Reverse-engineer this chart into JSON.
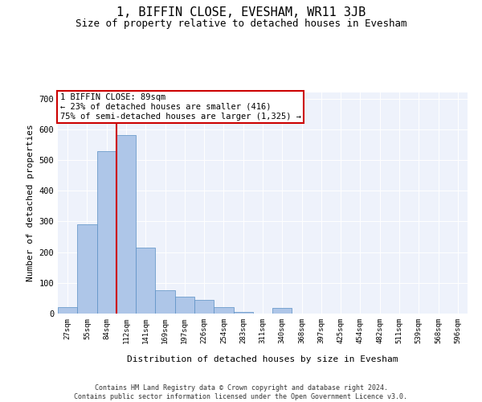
{
  "title": "1, BIFFIN CLOSE, EVESHAM, WR11 3JB",
  "subtitle": "Size of property relative to detached houses in Evesham",
  "xlabel": "Distribution of detached houses by size in Evesham",
  "ylabel": "Number of detached properties",
  "categories": [
    "27sqm",
    "55sqm",
    "84sqm",
    "112sqm",
    "141sqm",
    "169sqm",
    "197sqm",
    "226sqm",
    "254sqm",
    "283sqm",
    "311sqm",
    "340sqm",
    "368sqm",
    "397sqm",
    "425sqm",
    "454sqm",
    "482sqm",
    "511sqm",
    "539sqm",
    "568sqm",
    "596sqm"
  ],
  "values": [
    20,
    290,
    530,
    580,
    215,
    75,
    55,
    45,
    20,
    5,
    0,
    18,
    0,
    0,
    0,
    0,
    0,
    0,
    0,
    0,
    0
  ],
  "bar_color": "#aec6e8",
  "bar_edge_color": "#5a8fc4",
  "property_label": "1 BIFFIN CLOSE: 89sqm",
  "annotation_line1": "← 23% of detached houses are smaller (416)",
  "annotation_line2": "75% of semi-detached houses are larger (1,325) →",
  "vline_x": 2.5,
  "vline_color": "#cc0000",
  "ylim": [
    0,
    720
  ],
  "yticks": [
    0,
    100,
    200,
    300,
    400,
    500,
    600,
    700
  ],
  "annotation_box_facecolor": "#ffffff",
  "annotation_box_edgecolor": "#cc0000",
  "bg_color": "#eef2fb",
  "footer_line1": "Contains HM Land Registry data © Crown copyright and database right 2024.",
  "footer_line2": "Contains public sector information licensed under the Open Government Licence v3.0.",
  "title_fontsize": 11,
  "subtitle_fontsize": 9,
  "axis_label_fontsize": 8,
  "tick_fontsize": 6.5,
  "annotation_fontsize": 7.5,
  "footer_fontsize": 6
}
